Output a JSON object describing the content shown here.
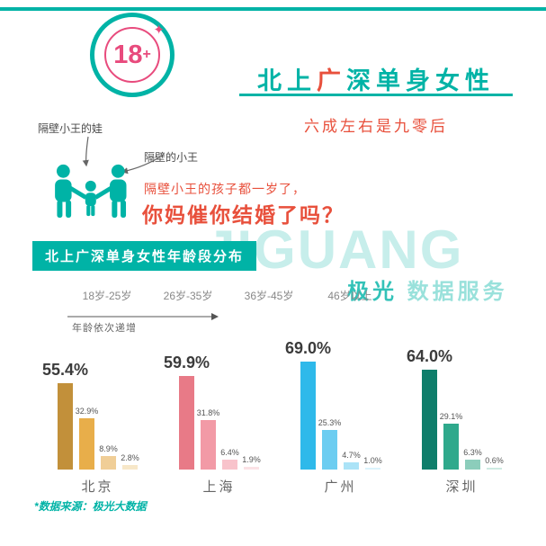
{
  "colors": {
    "teal": "#00B3A6",
    "red": "#E8503C",
    "pink": "#E84B7D"
  },
  "header": {
    "badge_number": "18",
    "badge_plus": "+",
    "title_part1": "北上",
    "title_part2": "广",
    "title_part3": "深单身女性",
    "subtitle": "六成左右是九零后"
  },
  "illustration": {
    "child_label": "隔壁小王的娃",
    "neighbor_label": "隔壁的小王",
    "caption_line1": "隔壁小王的孩子都一岁了，",
    "caption_line2": "你妈催你结婚了吗？"
  },
  "section": {
    "banner": "北上广深单身女性年龄段分布",
    "legend": [
      "18岁-25岁",
      "26岁-35岁",
      "36岁-45岁",
      "46岁以上"
    ],
    "legend_note": "年龄依次递增"
  },
  "watermark": {
    "brand": "JIGUANG",
    "name": "极光",
    "suffix": "数据服务"
  },
  "footer": {
    "source": "*数据来源：极光大数据"
  },
  "chart_data": {
    "type": "bar",
    "title": "北上广深单身女性年龄段分布",
    "categories": [
      "18岁-25岁",
      "26岁-35岁",
      "36岁-45岁",
      "46岁以上"
    ],
    "unit": "%",
    "ylim": [
      0,
      70
    ],
    "grid": false,
    "groups": [
      {
        "city": "北京",
        "values": [
          55.4,
          32.9,
          8.9,
          2.8
        ],
        "colors": [
          "#C2903A",
          "#E8AE4A",
          "#F0CE97",
          "#F7E7C8"
        ]
      },
      {
        "city": "上海",
        "values": [
          59.9,
          31.8,
          6.4,
          1.9
        ],
        "colors": [
          "#E87A87",
          "#F29AA6",
          "#F8C3CB",
          "#FBE2E5"
        ]
      },
      {
        "city": "广州",
        "values": [
          69.0,
          25.3,
          4.7,
          1.0
        ],
        "colors": [
          "#2EB9EA",
          "#6CCDF1",
          "#ABE3F7",
          "#DBF3FC"
        ]
      },
      {
        "city": "深圳",
        "values": [
          64.0,
          29.1,
          6.3,
          0.6
        ],
        "colors": [
          "#0F7E6B",
          "#2FA98C",
          "#8CCDBB",
          "#CDEAE1"
        ]
      }
    ]
  }
}
